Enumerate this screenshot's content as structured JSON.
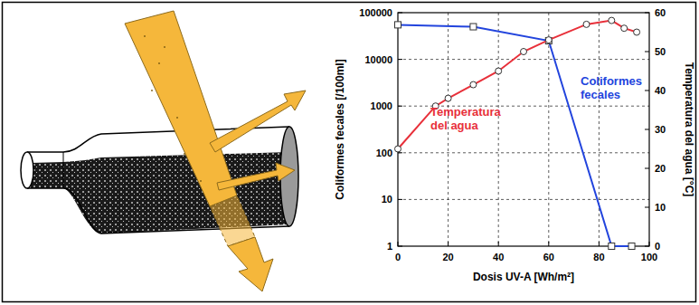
{
  "chart_data": {
    "type": "line",
    "x_label": "Dosis UV-A [Wh/m²]",
    "y_label": "Coliformes fecales [/100ml]",
    "y2_label": "Temperatura del agua [°C]",
    "log": "y",
    "grid": true,
    "xlim": [
      0,
      100
    ],
    "xticks": [
      0,
      20,
      40,
      60,
      80,
      100
    ],
    "ylim": [
      1,
      100000
    ],
    "yticks": [
      1,
      10,
      100,
      1000,
      10000,
      100000
    ],
    "y2lim": [
      0,
      60
    ],
    "y2ticks": [
      0,
      10,
      20,
      30,
      40,
      50,
      60
    ],
    "series": [
      {
        "name": "Coliformes fecales",
        "color": "#2244dd",
        "marker": "square",
        "x": [
          0,
          30,
          60,
          85,
          93
        ],
        "values": [
          55000,
          50000,
          25000,
          1,
          1
        ]
      },
      {
        "name": "Temperatura del agua",
        "color": "#e8303a",
        "marker": "circle",
        "axis": "y2",
        "x": [
          0,
          15,
          20,
          30,
          40,
          50,
          60,
          75,
          85,
          90,
          95
        ],
        "values": [
          25,
          36,
          38,
          41.5,
          45,
          50,
          53,
          57,
          58,
          56,
          55
        ]
      }
    ]
  }
}
